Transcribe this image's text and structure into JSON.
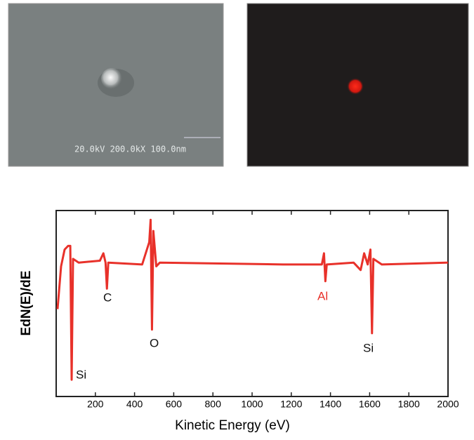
{
  "sem_image": {
    "label": "20.0kV 200.0kX 100.0nm"
  },
  "chart_data": {
    "type": "line",
    "x_label": "Kinetic Energy (eV)",
    "y_label": "EdN(E)/dE",
    "x": [
      7,
      25,
      43,
      61,
      72,
      79,
      86,
      115,
      223,
      241,
      252,
      259,
      266,
      439,
      457,
      475,
      482,
      489,
      496,
      511,
      529,
      1158,
      1356,
      1367,
      1374,
      1381,
      1518,
      1554,
      1572,
      1590,
      1604,
      1612,
      1619,
      1662,
      2000
    ],
    "values": [
      4.7,
      7.0,
      7.9,
      8.1,
      8.1,
      0.9,
      7.4,
      7.2,
      7.3,
      7.7,
      7.2,
      5.8,
      7.2,
      7.1,
      7.7,
      8.3,
      9.5,
      3.6,
      8.9,
      7.0,
      7.2,
      7.1,
      7.1,
      7.7,
      6.2,
      7.1,
      7.2,
      6.8,
      7.7,
      7.1,
      7.9,
      3.4,
      7.4,
      7.1,
      7.2
    ],
    "color": "#e8312a",
    "xlim": [
      0,
      2000
    ],
    "ylim": [
      0,
      10
    ],
    "xticks": [
      200,
      400,
      600,
      800,
      1000,
      1200,
      1400,
      1600,
      1800,
      2000
    ],
    "annotations": [
      "Si",
      "C",
      "O",
      "Al",
      "Si"
    ]
  }
}
